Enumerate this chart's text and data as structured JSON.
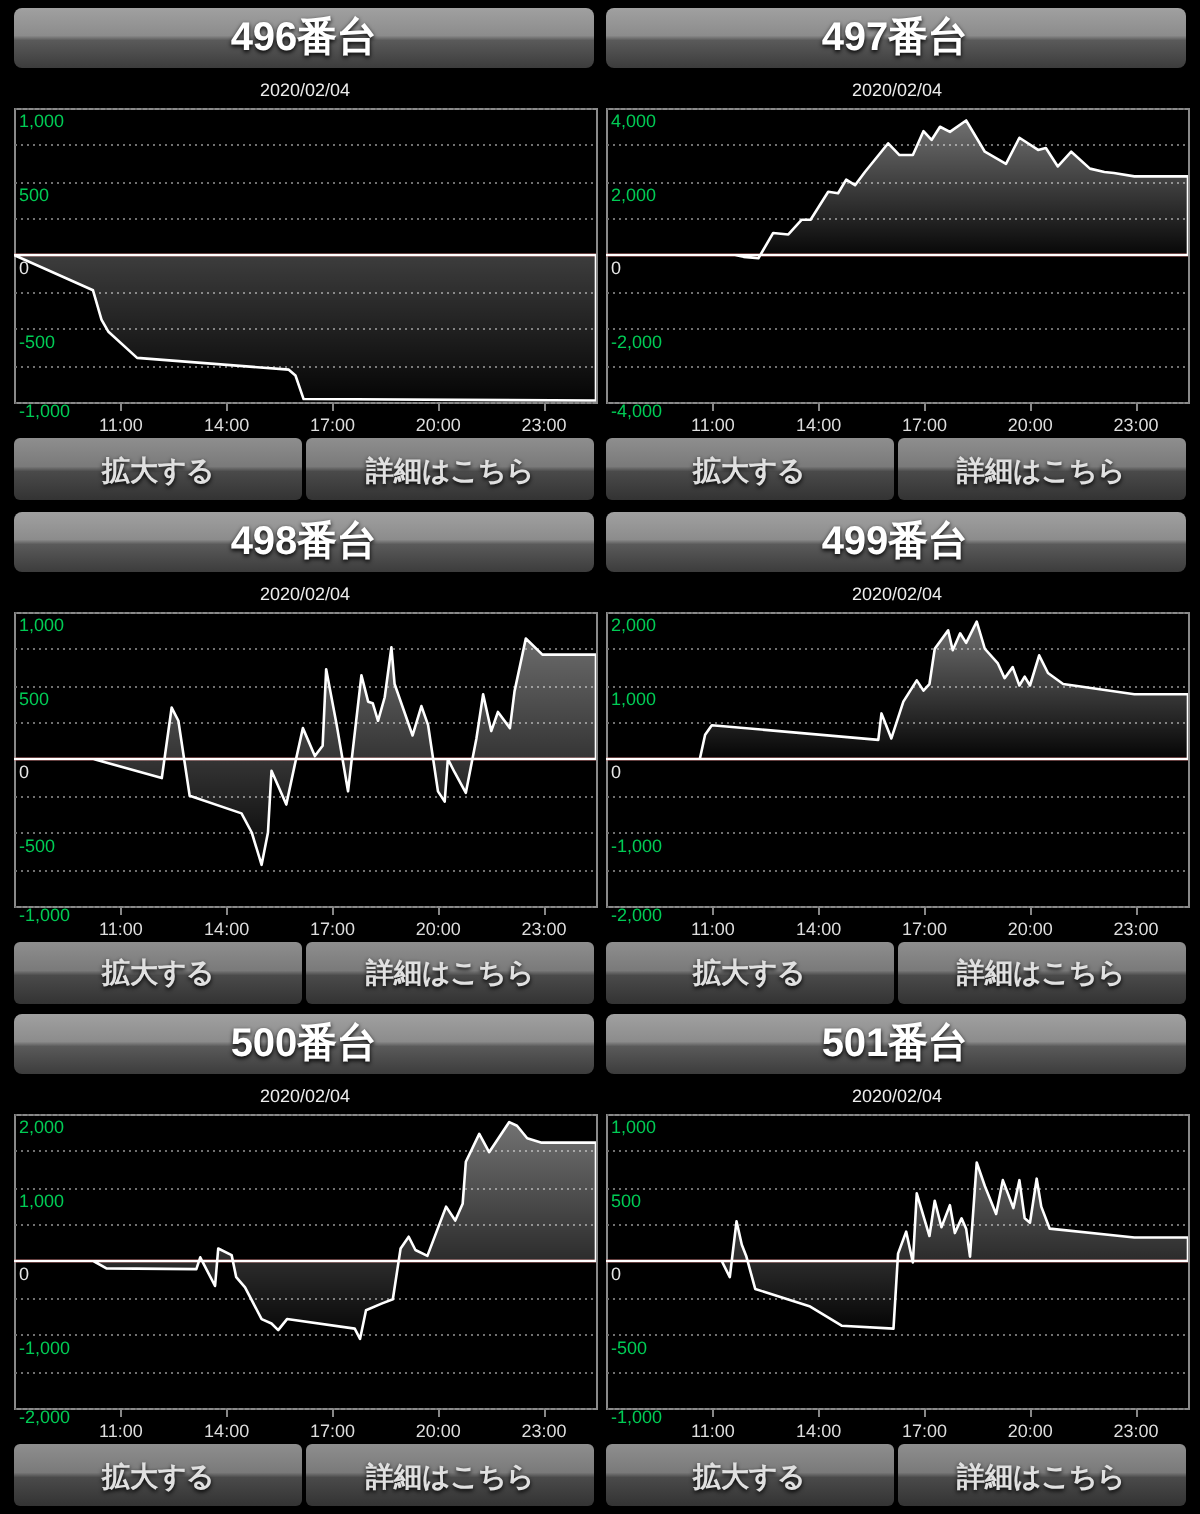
{
  "chart_data": [
    {
      "type": "area",
      "title": "496番台",
      "subtitle": "2020/02/04",
      "color": "#ffffff",
      "x": [
        8,
        10.24,
        10.48,
        10.67,
        11.49,
        15.79,
        15.98,
        16.21,
        24.5
      ],
      "values": [
        0,
        -240,
        -440,
        -520,
        -700,
        -780,
        -820,
        -980,
        -990
      ],
      "xlim": [
        8,
        24.5
      ],
      "xticks": [
        {
          "value": 11,
          "label": "11:00"
        },
        {
          "value": 14,
          "label": "14:00"
        },
        {
          "value": 17,
          "label": "17:00"
        },
        {
          "value": 20,
          "label": "20:00"
        },
        {
          "value": 23,
          "label": "23:00"
        }
      ],
      "ylim": [
        -1000,
        1000
      ],
      "yticks": [
        {
          "value": 1000,
          "label": "1,000"
        },
        {
          "value": 750,
          "label": null
        },
        500,
        {
          "value": 250,
          "label": null
        },
        0,
        {
          "value": -250,
          "label": null
        },
        -500,
        {
          "value": -750,
          "label": null
        },
        {
          "value": -1000,
          "label": "-1,000"
        }
      ],
      "grid": "y",
      "ref_lines": [
        {
          "axis": "y",
          "value": 0,
          "color": "#cc0000"
        }
      ],
      "annotations": [
        "拡大する",
        "詳細はこちら"
      ]
    },
    {
      "type": "area",
      "title": "497番台",
      "subtitle": "2020/02/04",
      "color": "#ffffff",
      "x": [
        8,
        11.66,
        11.9,
        12.32,
        12.74,
        13.17,
        13.55,
        13.8,
        14.3,
        14.58,
        14.81,
        15.06,
        15.34,
        16.0,
        16.32,
        16.7,
        17.0,
        17.23,
        17.47,
        17.75,
        18.21,
        18.74,
        19.34,
        19.72,
        20.25,
        20.47,
        20.81,
        21.19,
        21.72,
        22.13,
        22.4,
        22.98,
        24.5
      ],
      "values": [
        0,
        0,
        -50,
        -90,
        600,
        560,
        960,
        960,
        1720,
        1680,
        2050,
        1900,
        2260,
        3040,
        2720,
        2720,
        3370,
        3130,
        3490,
        3350,
        3660,
        2810,
        2480,
        3190,
        2860,
        2910,
        2410,
        2810,
        2350,
        2260,
        2230,
        2140,
        2140
      ],
      "xlim": [
        8,
        24.5
      ],
      "xticks": [
        {
          "value": 11,
          "label": "11:00"
        },
        {
          "value": 14,
          "label": "14:00"
        },
        {
          "value": 17,
          "label": "17:00"
        },
        {
          "value": 20,
          "label": "20:00"
        },
        {
          "value": 23,
          "label": "23:00"
        }
      ],
      "ylim": [
        -4000,
        4000
      ],
      "yticks": [
        {
          "value": 4000,
          "label": "4,000"
        },
        {
          "value": 3000,
          "label": null
        },
        {
          "value": 2000,
          "label": "2,000"
        },
        {
          "value": 1000,
          "label": null
        },
        0,
        {
          "value": -1000,
          "label": null
        },
        {
          "value": -2000,
          "label": "-2,000"
        },
        {
          "value": -3000,
          "label": null
        },
        {
          "value": -4000,
          "label": "-4,000"
        }
      ],
      "grid": "y",
      "ref_lines": [
        {
          "axis": "y",
          "value": 0,
          "color": "#cc0000"
        }
      ],
      "annotations": [
        "拡大する",
        "詳細はこちら"
      ]
    },
    {
      "type": "area",
      "title": "498番台",
      "subtitle": "2020/02/04",
      "color": "#ffffff",
      "x": [
        8,
        10.25,
        12.19,
        12.47,
        12.66,
        12.98,
        14.45,
        14.74,
        15.02,
        15.2,
        15.3,
        15.72,
        15.96,
        16.19,
        16.53,
        16.75,
        16.85,
        17.15,
        17.47,
        17.85,
        18.04,
        18.17,
        18.32,
        18.51,
        18.7,
        18.79,
        19.3,
        19.55,
        19.74,
        20.02,
        20.21,
        20.3,
        20.49,
        20.81,
        21.11,
        21.3,
        21.53,
        21.72,
        22.06,
        22.19,
        22.51,
        22.98,
        24.5
      ],
      "values": [
        0,
        0,
        -130,
        350,
        260,
        -250,
        -370,
        -500,
        -720,
        -500,
        -80,
        -310,
        -40,
        210,
        20,
        90,
        610,
        230,
        -220,
        570,
        390,
        380,
        260,
        420,
        760,
        510,
        160,
        360,
        230,
        -220,
        -290,
        0,
        -90,
        -230,
        140,
        440,
        190,
        320,
        210,
        460,
        820,
        710,
        710
      ],
      "xlim": [
        8,
        24.5
      ],
      "xticks": [
        {
          "value": 11,
          "label": "11:00"
        },
        {
          "value": 14,
          "label": "14:00"
        },
        {
          "value": 17,
          "label": "17:00"
        },
        {
          "value": 20,
          "label": "20:00"
        },
        {
          "value": 23,
          "label": "23:00"
        }
      ],
      "ylim": [
        -1000,
        1000
      ],
      "yticks": [
        {
          "value": 1000,
          "label": "1,000"
        },
        {
          "value": 750,
          "label": null
        },
        500,
        {
          "value": 250,
          "label": null
        },
        0,
        {
          "value": -250,
          "label": null
        },
        -500,
        {
          "value": -750,
          "label": null
        },
        {
          "value": -1000,
          "label": "-1,000"
        }
      ],
      "grid": "y",
      "ref_lines": [
        {
          "axis": "y",
          "value": 0,
          "color": "#cc0000"
        }
      ],
      "annotations": [
        "拡大する",
        "詳細はこちら"
      ]
    },
    {
      "type": "area",
      "title": "499番台",
      "subtitle": "2020/02/04",
      "color": "#ffffff",
      "x": [
        8,
        10.66,
        10.81,
        11.0,
        15.72,
        15.81,
        16.09,
        16.43,
        16.81,
        17.0,
        17.17,
        17.32,
        17.7,
        17.83,
        18.04,
        18.21,
        18.51,
        18.74,
        19.11,
        19.3,
        19.53,
        19.72,
        19.87,
        20.02,
        20.28,
        20.53,
        20.96,
        22.98,
        24.5
      ],
      "values": [
        0,
        0,
        330,
        460,
        260,
        620,
        280,
        780,
        1070,
        930,
        1020,
        1500,
        1750,
        1480,
        1710,
        1580,
        1870,
        1500,
        1300,
        1100,
        1250,
        1000,
        1120,
        1000,
        1410,
        1170,
        1020,
        880,
        880
      ],
      "xlim": [
        8,
        24.5
      ],
      "xticks": [
        {
          "value": 11,
          "label": "11:00"
        },
        {
          "value": 14,
          "label": "14:00"
        },
        {
          "value": 17,
          "label": "17:00"
        },
        {
          "value": 20,
          "label": "20:00"
        },
        {
          "value": 23,
          "label": "23:00"
        }
      ],
      "ylim": [
        -2000,
        2000
      ],
      "yticks": [
        {
          "value": 2000,
          "label": "2,000"
        },
        {
          "value": 1500,
          "label": null
        },
        {
          "value": 1000,
          "label": "1,000"
        },
        {
          "value": 500,
          "label": null
        },
        0,
        {
          "value": -500,
          "label": null
        },
        {
          "value": -1000,
          "label": "-1,000"
        },
        {
          "value": -1500,
          "label": null
        },
        {
          "value": -2000,
          "label": "-2,000"
        }
      ],
      "grid": "y",
      "ref_lines": [
        {
          "axis": "y",
          "value": 0,
          "color": "#cc0000"
        }
      ],
      "annotations": [
        "拡大する",
        "詳細はこちら"
      ]
    },
    {
      "type": "area",
      "title": "500番台",
      "subtitle": "2020/02/04",
      "color": "#ffffff",
      "x": [
        8,
        10.25,
        10.62,
        13.17,
        13.28,
        13.7,
        13.79,
        14.17,
        14.3,
        14.55,
        15.02,
        15.3,
        15.49,
        15.74,
        17.66,
        17.81,
        17.98,
        18.42,
        18.74,
        18.96,
        19.19,
        19.38,
        19.72,
        20.25,
        20.51,
        20.72,
        20.81,
        21.19,
        21.47,
        22.04,
        22.26,
        22.55,
        22.96,
        24.5
      ],
      "values": [
        0,
        0,
        -100,
        -110,
        50,
        -340,
        170,
        80,
        -220,
        -360,
        -790,
        -850,
        -940,
        -790,
        -920,
        -1060,
        -670,
        -580,
        -520,
        170,
        330,
        150,
        70,
        740,
        550,
        780,
        1350,
        1730,
        1480,
        1890,
        1840,
        1670,
        1610,
        1610
      ],
      "xlim": [
        8,
        24.5
      ],
      "xticks": [
        {
          "value": 11,
          "label": "11:00"
        },
        {
          "value": 14,
          "label": "14:00"
        },
        {
          "value": 17,
          "label": "17:00"
        },
        {
          "value": 20,
          "label": "20:00"
        },
        {
          "value": 23,
          "label": "23:00"
        }
      ],
      "ylim": [
        -2000,
        2000
      ],
      "yticks": [
        {
          "value": 2000,
          "label": "2,000"
        },
        {
          "value": 1500,
          "label": null
        },
        {
          "value": 1000,
          "label": "1,000"
        },
        {
          "value": 500,
          "label": null
        },
        0,
        {
          "value": -500,
          "label": null
        },
        {
          "value": -1000,
          "label": "-1,000"
        },
        {
          "value": -1500,
          "label": null
        },
        {
          "value": -2000,
          "label": "-2,000"
        }
      ],
      "grid": "y",
      "ref_lines": [
        {
          "axis": "y",
          "value": 0,
          "color": "#cc0000"
        }
      ],
      "annotations": [
        "拡大する",
        "詳細はこちら"
      ]
    },
    {
      "type": "area",
      "title": "501番台",
      "subtitle": "2020/02/04",
      "color": "#ffffff",
      "x": [
        8,
        11.28,
        11.51,
        11.7,
        11.85,
        11.98,
        12.23,
        13.79,
        14.68,
        16.15,
        16.28,
        16.51,
        16.7,
        16.81,
        17.17,
        17.32,
        17.51,
        17.75,
        17.89,
        18.08,
        18.21,
        18.32,
        18.51,
        18.74,
        19.06,
        19.25,
        19.55,
        19.72,
        19.87,
        20.02,
        20.21,
        20.34,
        20.58,
        22.98,
        24.5
      ],
      "values": [
        0,
        0,
        -110,
        270,
        110,
        30,
        -190,
        -310,
        -440,
        -460,
        50,
        200,
        -10,
        460,
        170,
        410,
        230,
        380,
        190,
        290,
        220,
        30,
        670,
        510,
        320,
        550,
        360,
        550,
        290,
        260,
        560,
        370,
        220,
        160,
        160
      ],
      "xlim": [
        8,
        24.5
      ],
      "xticks": [
        {
          "value": 11,
          "label": "11:00"
        },
        {
          "value": 14,
          "label": "14:00"
        },
        {
          "value": 17,
          "label": "17:00"
        },
        {
          "value": 20,
          "label": "20:00"
        },
        {
          "value": 23,
          "label": "23:00"
        }
      ],
      "ylim": [
        -1000,
        1000
      ],
      "yticks": [
        {
          "value": 1000,
          "label": "1,000"
        },
        {
          "value": 750,
          "label": null
        },
        500,
        {
          "value": 250,
          "label": null
        },
        0,
        {
          "value": -250,
          "label": null
        },
        -500,
        {
          "value": -750,
          "label": null
        },
        {
          "value": -1000,
          "label": "-1,000"
        }
      ],
      "grid": "y",
      "ref_lines": [
        {
          "axis": "y",
          "value": 0,
          "color": "#cc0000"
        }
      ],
      "annotations": [
        "拡大する",
        "詳細はこちら"
      ]
    }
  ]
}
